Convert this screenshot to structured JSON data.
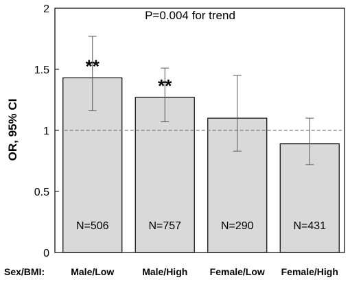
{
  "chart_data": {
    "type": "bar",
    "categories": [
      "Male/Low",
      "Male/High",
      "Female/Low",
      "Female/High"
    ],
    "values": [
      1.43,
      1.27,
      1.1,
      0.89
    ],
    "ci_lower": [
      1.16,
      1.07,
      0.83,
      0.72
    ],
    "ci_upper": [
      1.77,
      1.51,
      1.45,
      1.1
    ],
    "n_labels": [
      "N=506",
      "N=757",
      "N=290",
      "N=431"
    ],
    "significance": [
      "**",
      "**",
      "",
      ""
    ],
    "reference_line": 1,
    "ylim": [
      0,
      2
    ],
    "yticks": [
      0,
      0.5,
      1,
      1.5,
      2
    ],
    "ytick_labels": [
      "0",
      "0.5",
      "1",
      "1.5",
      "2"
    ],
    "ylabel": "OR, 95% CI",
    "xlabel": "Sex/BMI:",
    "annotation": "P=0.004 for trend",
    "grid": false,
    "colors": {
      "bar_fill": "#d9d9d9",
      "bar_stroke": "#000000",
      "reference_line": "#808080",
      "error_bar": "#555555"
    }
  }
}
